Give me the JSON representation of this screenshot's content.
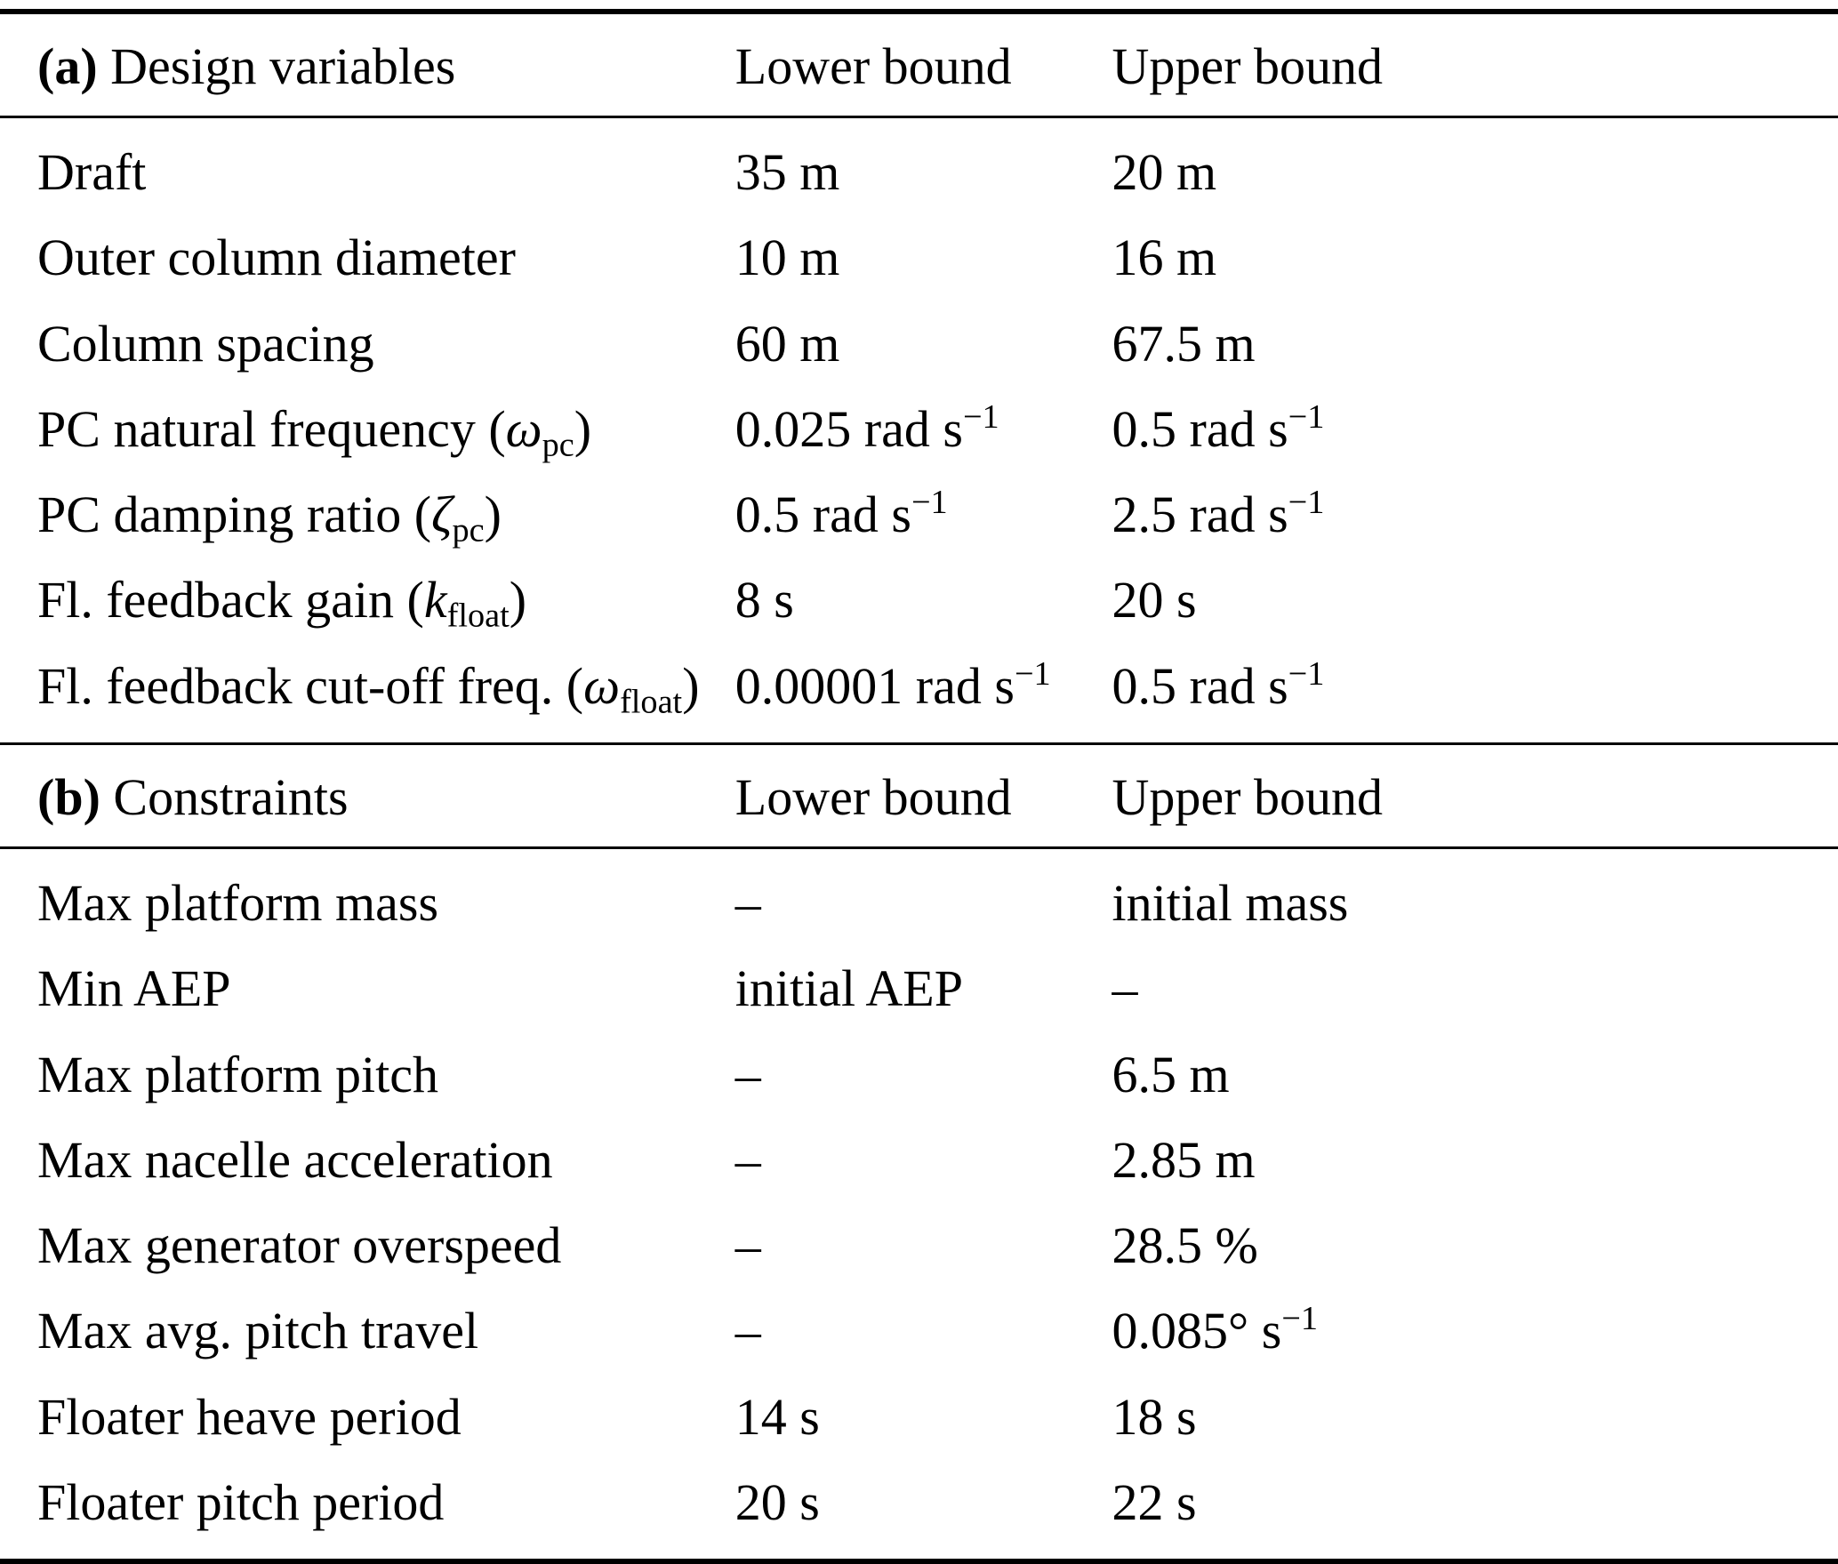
{
  "page": {
    "background": "#ffffff",
    "text_color": "#000000",
    "rule_color": "#000000"
  },
  "section_a": {
    "tag": "(a)",
    "title": " Design variables",
    "col_lower": "Lower bound",
    "col_upper": "Upper bound",
    "rows": [
      {
        "pre": "Draft",
        "lo": "35 m",
        "up": "20 m"
      },
      {
        "pre": "Outer column diameter",
        "lo": "10 m",
        "up": "16 m"
      },
      {
        "pre": "Column spacing",
        "lo": "60 m",
        "up": "67.5 m"
      },
      {
        "pre": "PC natural frequency (",
        "sym": "ω",
        "sub": "pc",
        "post": ")",
        "lo": "0.025 rad s",
        "lo_sup": "−1",
        "up": "0.5 rad s",
        "up_sup": "−1"
      },
      {
        "pre": "PC damping ratio (",
        "sym": "ζ",
        "sub": "pc",
        "post": ")",
        "lo": "0.5 rad s",
        "lo_sup": "−1",
        "up": "2.5 rad s",
        "up_sup": "−1"
      },
      {
        "pre": "Fl. feedback gain (",
        "sym": "k",
        "sub": "float",
        "post": ")",
        "lo": "8 s",
        "up": "20 s"
      },
      {
        "pre": "Fl. feedback cut-off freq. (",
        "sym": "ω",
        "sub": "float",
        "post": ")",
        "lo": "0.00001 rad s",
        "lo_sup": "−1",
        "up": "0.5 rad s",
        "up_sup": "−1"
      }
    ]
  },
  "section_b": {
    "tag": "(b)",
    "title": " Constraints",
    "col_lower": "Lower bound",
    "col_upper": "Upper bound",
    "rows": [
      {
        "pre": "Max platform mass",
        "lo": "–",
        "up": "initial mass"
      },
      {
        "pre": "Min AEP",
        "lo": "initial AEP",
        "up": "–"
      },
      {
        "pre": "Max platform pitch",
        "lo": "–",
        "up": "6.5 m"
      },
      {
        "pre": "Max nacelle acceleration",
        "lo": "–",
        "up": "2.85 m"
      },
      {
        "pre": "Max generator overspeed",
        "lo": "–",
        "up": "28.5 %"
      },
      {
        "pre": "Max avg. pitch travel",
        "lo": "–",
        "up": "0.085° s",
        "up_sup": "−1"
      },
      {
        "pre": "Floater heave period",
        "lo": "14 s",
        "up": "18 s"
      },
      {
        "pre": "Floater pitch period",
        "lo": "20 s",
        "up": "22 s"
      }
    ]
  }
}
